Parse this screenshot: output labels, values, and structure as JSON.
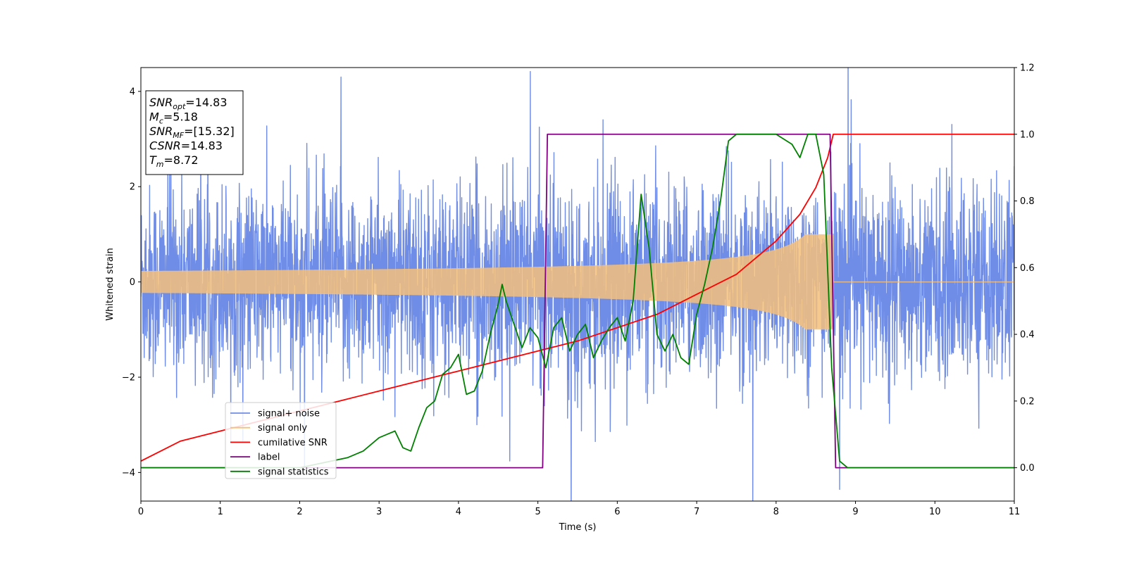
{
  "chart_data": {
    "type": "line",
    "xlabel": "Time (s)",
    "ylabel": "Whitened strain",
    "xlim": [
      0,
      11
    ],
    "ylim_left": [
      -4.6,
      4.5
    ],
    "ylim_right": [
      -0.1,
      1.2
    ],
    "x_ticks": [
      0,
      1,
      2,
      3,
      4,
      5,
      6,
      7,
      8,
      9,
      10,
      11
    ],
    "y_ticks_left": [
      -4,
      -2,
      0,
      2,
      4
    ],
    "y_ticks_right": [
      0.0,
      0.2,
      0.4,
      0.6,
      0.8,
      1.0,
      1.2
    ],
    "grid": false,
    "legend_position": "lower-left",
    "annotation": [
      {
        "sym": "SNR",
        "sub": "opt",
        "rest": "=14.83"
      },
      {
        "sym": "M",
        "sub": "c",
        "rest": "=5.18"
      },
      {
        "sym": "SNR",
        "sub": "MF",
        "rest": "=[15.32]"
      },
      {
        "sym": "CSNR",
        "sub": "",
        "rest": "=14.83"
      },
      {
        "sym": "T",
        "sub": "m",
        "rest": "=8.72"
      }
    ],
    "series": [
      {
        "name": "signal+ noise",
        "axis": "left",
        "color": "#6f8de6",
        "kind": "noise",
        "std": 1.0,
        "x_range": [
          0,
          11
        ]
      },
      {
        "name": "signal only",
        "axis": "left",
        "color": "#f5c07a",
        "kind": "chirp",
        "x_range": [
          0,
          11
        ],
        "merger_time": 8.72,
        "amplitude_start": 0.1,
        "amplitude_peak": 1.0
      },
      {
        "name": "cumilative SNR",
        "axis": "right",
        "color": "#ff0000",
        "x": [
          0,
          0.5,
          1,
          1.5,
          2,
          2.5,
          3,
          3.5,
          4,
          4.5,
          5,
          5.5,
          6,
          6.5,
          7,
          7.5,
          8,
          8.3,
          8.5,
          8.65,
          8.72,
          11
        ],
        "values": [
          0.02,
          0.08,
          0.11,
          0.14,
          0.17,
          0.2,
          0.23,
          0.26,
          0.29,
          0.32,
          0.35,
          0.38,
          0.42,
          0.46,
          0.52,
          0.58,
          0.68,
          0.76,
          0.84,
          0.93,
          1.0,
          1.0
        ]
      },
      {
        "name": "label",
        "axis": "right",
        "color": "#800080",
        "x": [
          0,
          5.06,
          5.12,
          8.68,
          8.75,
          11
        ],
        "values": [
          0,
          0,
          1,
          1,
          0,
          0
        ]
      },
      {
        "name": "signal statistics",
        "axis": "right",
        "color": "#008000",
        "x": [
          0,
          0.5,
          1,
          1.5,
          2,
          2.2,
          2.4,
          2.6,
          2.7,
          2.8,
          2.9,
          3.0,
          3.1,
          3.2,
          3.3,
          3.4,
          3.5,
          3.6,
          3.7,
          3.8,
          3.9,
          4.0,
          4.1,
          4.2,
          4.3,
          4.4,
          4.5,
          4.55,
          4.6,
          4.7,
          4.8,
          4.9,
          5.0,
          5.1,
          5.2,
          5.3,
          5.4,
          5.5,
          5.6,
          5.7,
          5.8,
          5.9,
          6.0,
          6.1,
          6.2,
          6.3,
          6.4,
          6.5,
          6.6,
          6.7,
          6.8,
          6.9,
          7.0,
          7.1,
          7.2,
          7.3,
          7.4,
          7.5,
          7.6,
          7.8,
          8.0,
          8.2,
          8.3,
          8.4,
          8.5,
          8.6,
          8.7,
          8.8,
          8.9,
          9.0,
          11
        ],
        "values": [
          0.0,
          0.0,
          0.0,
          0.0,
          0.0,
          0.01,
          0.02,
          0.03,
          0.04,
          0.05,
          0.07,
          0.09,
          0.1,
          0.11,
          0.06,
          0.05,
          0.12,
          0.18,
          0.2,
          0.28,
          0.3,
          0.34,
          0.22,
          0.23,
          0.29,
          0.4,
          0.49,
          0.55,
          0.5,
          0.43,
          0.36,
          0.42,
          0.39,
          0.3,
          0.42,
          0.45,
          0.35,
          0.4,
          0.43,
          0.33,
          0.38,
          0.42,
          0.45,
          0.38,
          0.5,
          0.82,
          0.66,
          0.4,
          0.35,
          0.4,
          0.33,
          0.31,
          0.46,
          0.55,
          0.66,
          0.8,
          0.98,
          1.0,
          1.0,
          1.0,
          1.0,
          0.97,
          0.93,
          1.0,
          1.0,
          0.88,
          0.3,
          0.02,
          0.0,
          0.0,
          0.0
        ]
      }
    ]
  }
}
